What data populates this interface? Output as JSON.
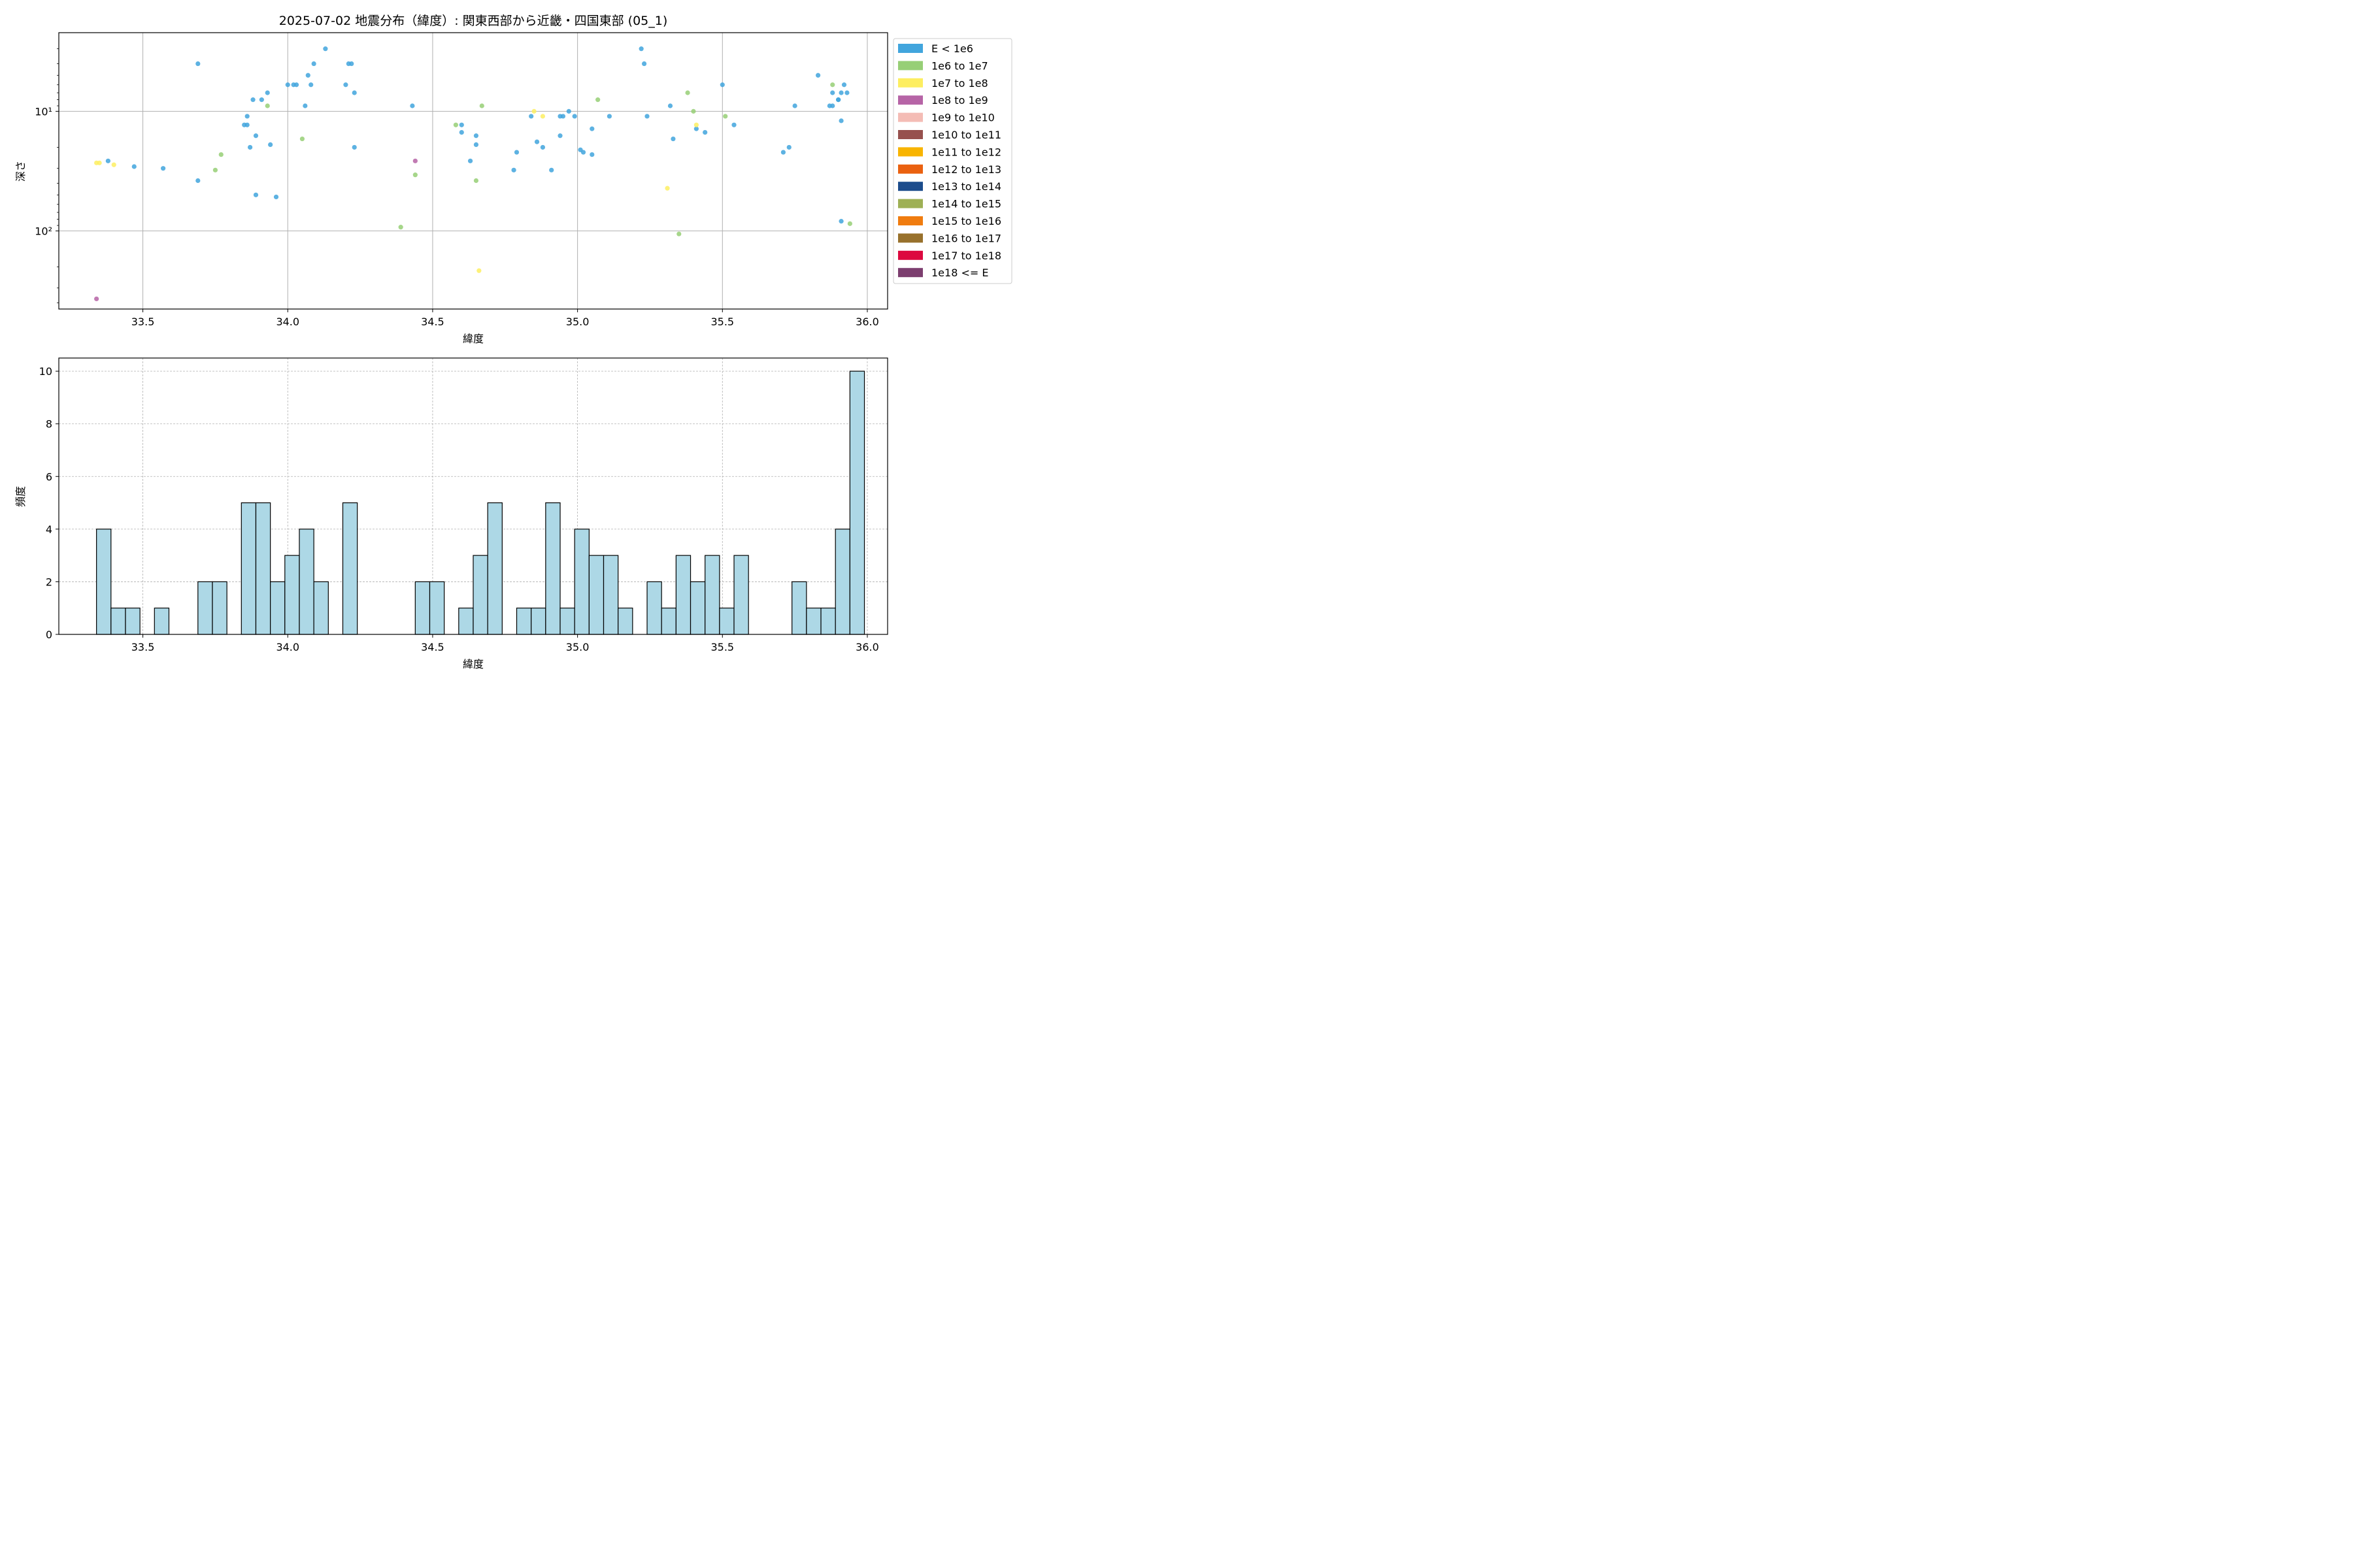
{
  "chart_data": [
    {
      "type": "scatter",
      "title": "2025-07-02 地震分布（緯度）: 関東西部から近畿・四国東部 (05_1)",
      "xlabel": "緯度",
      "ylabel": "深さ",
      "xlim": [
        33.21,
        36.07
      ],
      "ylim": [
        450,
        2.2
      ],
      "y_scale": "log",
      "y_inverted": true,
      "x_ticks": [
        33.5,
        34.0,
        34.5,
        35.0,
        35.5,
        36.0
      ],
      "x_tick_labels": [
        "33.5",
        "34.0",
        "34.5",
        "35.0",
        "35.5",
        "36.0"
      ],
      "y_ticks": [
        10,
        100
      ],
      "y_tick_labels": [
        "10¹",
        "10²"
      ],
      "grid": true,
      "legend_position": "outside-right",
      "legend": [
        {
          "label": "E < 1e6",
          "color": "#41a5dd"
        },
        {
          "label": "1e6 to 1e7",
          "color": "#97cf76"
        },
        {
          "label": "1e7 to 1e8",
          "color": "#fdee61"
        },
        {
          "label": "1e8 to 1e9",
          "color": "#b664a6"
        },
        {
          "label": "1e9 to 1e10",
          "color": "#f4bcb5"
        },
        {
          "label": "1e10 to 1e11",
          "color": "#97514e"
        },
        {
          "label": "1e11 to 1e12",
          "color": "#f8b400"
        },
        {
          "label": "1e12 to 1e13",
          "color": "#ea6110"
        },
        {
          "label": "1e13 to 1e14",
          "color": "#1c4c8c"
        },
        {
          "label": "1e14 to 1e15",
          "color": "#9eb055"
        },
        {
          "label": "1e15 to 1e16",
          "color": "#f07c0f"
        },
        {
          "label": "1e16 to 1e17",
          "color": "#98712c"
        },
        {
          "label": "1e17 to 1e18",
          "color": "#dc093f"
        },
        {
          "label": "1e18 <= E",
          "color": "#7c3e6f"
        }
      ],
      "series": [
        {
          "name": "E < 1e6",
          "color": "#41a5dd",
          "points": [
            [
              33.38,
              26
            ],
            [
              33.47,
              29
            ],
            [
              33.57,
              30
            ],
            [
              33.69,
              4
            ],
            [
              33.69,
              38
            ],
            [
              33.85,
              13
            ],
            [
              33.86,
              11
            ],
            [
              33.86,
              13
            ],
            [
              33.87,
              20
            ],
            [
              33.88,
              8
            ],
            [
              33.89,
              16
            ],
            [
              33.89,
              50
            ],
            [
              33.91,
              8
            ],
            [
              33.93,
              7
            ],
            [
              33.94,
              19
            ],
            [
              33.96,
              52
            ],
            [
              34.0,
              6
            ],
            [
              34.02,
              6
            ],
            [
              34.03,
              6
            ],
            [
              34.06,
              9
            ],
            [
              34.07,
              5
            ],
            [
              34.08,
              6
            ],
            [
              34.09,
              4
            ],
            [
              34.13,
              3
            ],
            [
              34.2,
              6
            ],
            [
              34.21,
              4
            ],
            [
              34.22,
              4
            ],
            [
              34.23,
              7
            ],
            [
              34.23,
              20
            ],
            [
              34.43,
              9
            ],
            [
              34.6,
              13
            ],
            [
              34.6,
              15
            ],
            [
              34.63,
              26
            ],
            [
              34.65,
              16
            ],
            [
              34.65,
              19
            ],
            [
              34.78,
              31
            ],
            [
              34.79,
              22
            ],
            [
              34.84,
              11
            ],
            [
              34.86,
              18
            ],
            [
              34.88,
              20
            ],
            [
              34.91,
              31
            ],
            [
              34.94,
              11
            ],
            [
              34.94,
              16
            ],
            [
              34.95,
              11
            ],
            [
              34.97,
              10
            ],
            [
              34.99,
              11
            ],
            [
              35.01,
              21
            ],
            [
              35.02,
              22
            ],
            [
              35.05,
              23
            ],
            [
              35.05,
              14
            ],
            [
              35.11,
              11
            ],
            [
              35.22,
              3
            ],
            [
              35.23,
              4
            ],
            [
              35.24,
              11
            ],
            [
              35.32,
              9
            ],
            [
              35.33,
              17
            ],
            [
              35.41,
              14
            ],
            [
              35.44,
              15
            ],
            [
              35.5,
              6
            ],
            [
              35.54,
              13
            ],
            [
              35.71,
              22
            ],
            [
              35.73,
              20
            ],
            [
              35.75,
              9
            ],
            [
              35.83,
              5
            ],
            [
              35.87,
              9
            ],
            [
              35.88,
              7
            ],
            [
              35.88,
              9
            ],
            [
              35.9,
              8
            ],
            [
              35.9,
              8
            ],
            [
              35.91,
              7
            ],
            [
              35.91,
              12
            ],
            [
              35.91,
              83
            ],
            [
              35.92,
              6
            ],
            [
              35.93,
              7
            ]
          ]
        },
        {
          "name": "1e6 to 1e7",
          "color": "#97cf76",
          "points": [
            [
              33.75,
              31
            ],
            [
              33.77,
              23
            ],
            [
              33.93,
              9
            ],
            [
              34.05,
              17
            ],
            [
              34.39,
              93
            ],
            [
              34.44,
              34
            ],
            [
              34.58,
              13
            ],
            [
              34.65,
              38
            ],
            [
              34.67,
              9
            ],
            [
              35.07,
              8
            ],
            [
              35.35,
              106
            ],
            [
              35.38,
              7
            ],
            [
              35.4,
              10
            ],
            [
              35.51,
              11
            ],
            [
              35.88,
              6
            ],
            [
              35.94,
              87
            ]
          ]
        },
        {
          "name": "1e7 to 1e8",
          "color": "#fdee61",
          "points": [
            [
              33.34,
              27
            ],
            [
              33.35,
              27
            ],
            [
              33.4,
              28
            ],
            [
              34.66,
              215
            ],
            [
              34.85,
              10
            ],
            [
              34.88,
              11
            ],
            [
              35.31,
              44
            ],
            [
              35.41,
              13
            ]
          ]
        },
        {
          "name": "1e8 to 1e9",
          "color": "#b664a6",
          "points": [
            [
              33.34,
              370
            ],
            [
              34.44,
              26
            ]
          ]
        }
      ]
    },
    {
      "type": "bar",
      "xlabel": "緯度",
      "ylabel": "頻度",
      "xlim": [
        33.21,
        36.07
      ],
      "ylim": [
        0,
        10.5
      ],
      "x_ticks": [
        33.5,
        34.0,
        34.5,
        35.0,
        35.5,
        36.0
      ],
      "x_tick_labels": [
        "33.5",
        "34.0",
        "34.5",
        "35.0",
        "35.5",
        "36.0"
      ],
      "y_ticks": [
        0,
        2,
        4,
        6,
        8,
        10
      ],
      "y_tick_labels": [
        "0",
        "2",
        "4",
        "6",
        "8",
        "10"
      ],
      "grid": true,
      "bar_color": "#add8e6",
      "bin_start": 33.34,
      "bin_width": 0.05,
      "values": [
        4,
        1,
        1,
        0,
        1,
        0,
        0,
        2,
        2,
        0,
        5,
        5,
        2,
        3,
        4,
        2,
        0,
        5,
        0,
        0,
        0,
        0,
        2,
        2,
        0,
        1,
        3,
        5,
        0,
        1,
        1,
        5,
        1,
        4,
        3,
        3,
        1,
        0,
        2,
        1,
        3,
        2,
        3,
        1,
        3,
        0,
        0,
        0,
        2,
        1,
        1,
        4,
        10
      ]
    }
  ]
}
